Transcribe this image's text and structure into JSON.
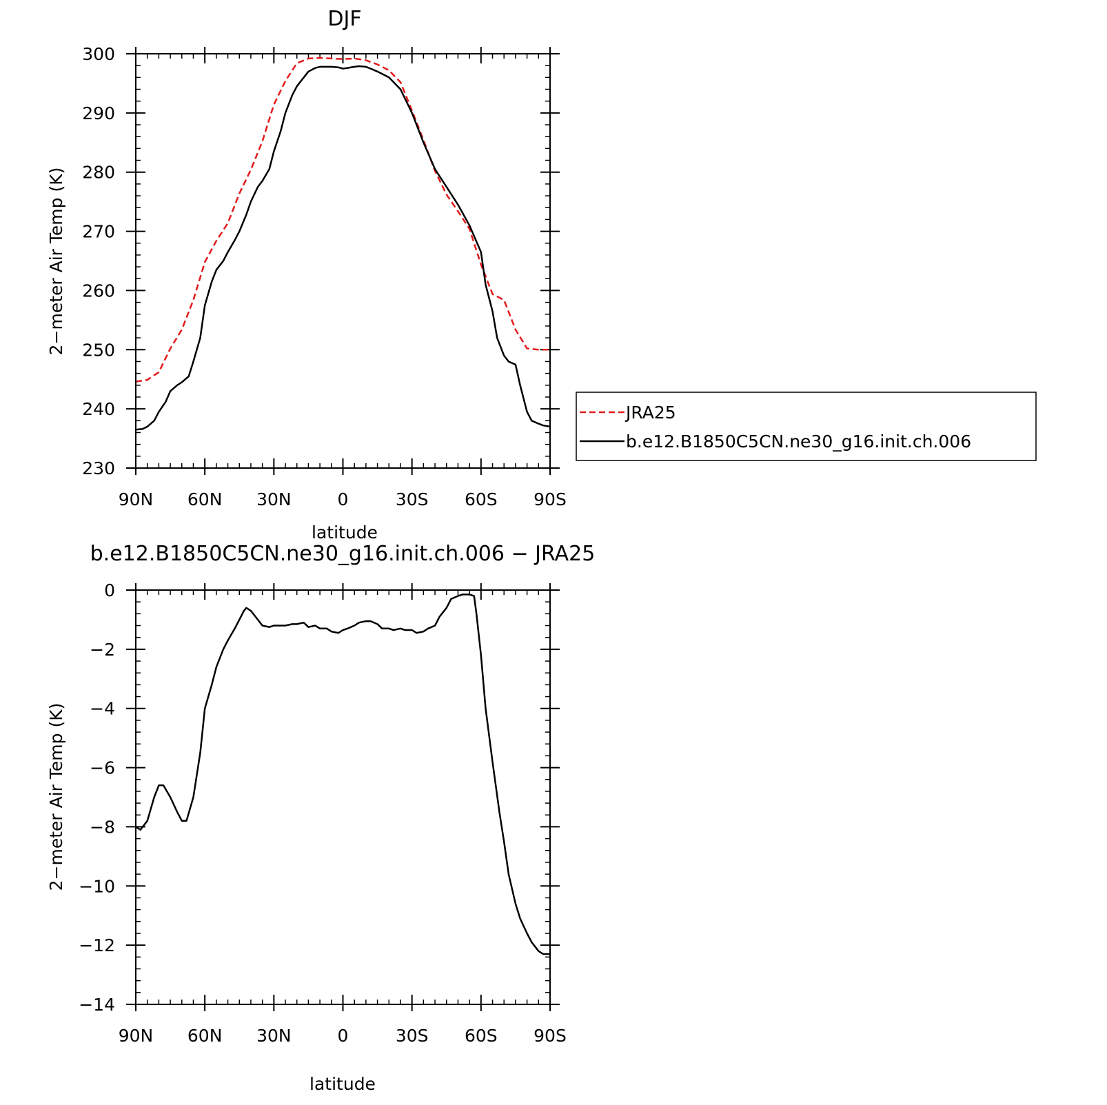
{
  "colors": {
    "jra": "#e41a1c",
    "model": "#000000",
    "axis": "#000000"
  },
  "legend": {
    "placement": "right of top panel",
    "entries": [
      {
        "label": "JRA25",
        "color": "#e41a1c",
        "style": "dashed"
      },
      {
        "label": "b.e12.B1850C5CN.ne30_g16.init.ch.006",
        "color": "#000000",
        "style": "solid"
      }
    ]
  },
  "chart_data": [
    {
      "type": "line",
      "title": "DJF",
      "xlabel": "latitude",
      "ylabel": "2−meter Air Temp (K)",
      "xlim": [
        90,
        -90
      ],
      "ylim": [
        230,
        300
      ],
      "xticks": [
        90,
        60,
        30,
        0,
        -30,
        -60,
        -90
      ],
      "xtick_labels": [
        "90N",
        "60N",
        "30N",
        "0",
        "30S",
        "60S",
        "90S"
      ],
      "yticks": [
        230,
        240,
        250,
        260,
        270,
        280,
        290,
        300
      ],
      "ytick_labels": [
        "230",
        "240",
        "250",
        "260",
        "270",
        "280",
        "290",
        "300"
      ],
      "grid": false,
      "series": [
        {
          "name": "JRA25",
          "color": "#e41a1c",
          "style": "dashed",
          "x": [
            90,
            85,
            80,
            75,
            70,
            65,
            60,
            55,
            50,
            45,
            40,
            35,
            30,
            25,
            20,
            15,
            10,
            5,
            0,
            -5,
            -10,
            -15,
            -20,
            -25,
            -30,
            -35,
            -40,
            -45,
            -50,
            -55,
            -60,
            -65,
            -70,
            -75,
            -80,
            -85,
            -88,
            -90
          ],
          "values": [
            244.6,
            244.9,
            246.2,
            250.2,
            253.4,
            258.4,
            264.8,
            268.4,
            271.4,
            276.4,
            280.4,
            285.2,
            291.4,
            295.4,
            298.4,
            299.2,
            299.3,
            299.2,
            299.1,
            299.2,
            298.9,
            298.2,
            297.2,
            295.2,
            290.4,
            285.4,
            280.2,
            276.2,
            273.4,
            270.4,
            264.4,
            259.4,
            258.4,
            253.4,
            250.2,
            250.0,
            250.0,
            250.0
          ]
        },
        {
          "name": "b.e12.B1850C5CN.ne30_g16.init.ch.006",
          "color": "#000000",
          "style": "solid",
          "x": [
            90,
            87,
            85,
            82,
            80,
            77,
            75,
            72,
            70,
            67,
            65,
            62,
            60,
            57,
            55,
            52,
            50,
            47,
            45,
            42,
            40,
            37,
            35,
            32,
            30,
            27,
            25,
            22,
            20,
            17,
            15,
            12,
            10,
            7,
            5,
            2,
            0,
            -2,
            -5,
            -7,
            -10,
            -12,
            -15,
            -20,
            -25,
            -30,
            -35,
            -40,
            -45,
            -50,
            -55,
            -60,
            -62,
            -65,
            -67,
            -70,
            -72,
            -75,
            -77,
            -80,
            -82,
            -85,
            -87,
            -90
          ],
          "values": [
            236.5,
            236.6,
            237.0,
            238.0,
            239.5,
            241.2,
            243.0,
            244.0,
            244.5,
            245.5,
            248.0,
            252.0,
            257.5,
            261.5,
            263.5,
            265.0,
            266.5,
            268.5,
            270.0,
            272.8,
            275.0,
            277.5,
            278.5,
            280.5,
            283.5,
            287.0,
            290.0,
            293.0,
            294.5,
            296.0,
            297.0,
            297.6,
            297.8,
            297.8,
            297.8,
            297.7,
            297.5,
            297.6,
            297.8,
            297.9,
            297.8,
            297.5,
            297.0,
            296.0,
            294.0,
            290.0,
            285.0,
            280.5,
            277.5,
            274.5,
            271.0,
            266.5,
            261.0,
            256.5,
            252.0,
            249.0,
            248.0,
            247.5,
            244.0,
            239.5,
            238.0,
            237.5,
            237.2,
            237.0
          ]
        }
      ]
    },
    {
      "type": "line",
      "title": "b.e12.B1850C5CN.ne30_g16.init.ch.006 − JRA25",
      "xlabel": "latitude",
      "ylabel": "2−meter Air Temp (K)",
      "xlim": [
        90,
        -90
      ],
      "ylim": [
        -14,
        0
      ],
      "xticks": [
        90,
        60,
        30,
        0,
        -30,
        -60,
        -90
      ],
      "xtick_labels": [
        "90N",
        "60N",
        "30N",
        "0",
        "30S",
        "60S",
        "90S"
      ],
      "yticks": [
        0,
        -2,
        -4,
        -6,
        -8,
        -10,
        -12,
        -14
      ],
      "ytick_labels": [
        "0",
        "−2",
        "−4",
        "−6",
        "−8",
        "−10",
        "−12",
        "−14"
      ],
      "grid": false,
      "series": [
        {
          "name": "b.e12.B1850C5CN.ne30_g16.init.ch.006 − JRA25",
          "color": "#000000",
          "style": "solid",
          "x": [
            90,
            88,
            85,
            82,
            80,
            78,
            75,
            72,
            70,
            68,
            65,
            62,
            60,
            57,
            55,
            52,
            50,
            47,
            45,
            43,
            42,
            40,
            37,
            35,
            32,
            30,
            27,
            25,
            22,
            20,
            17,
            15,
            12,
            10,
            7,
            5,
            2,
            0,
            -2,
            -5,
            -7,
            -10,
            -12,
            -15,
            -17,
            -20,
            -22,
            -25,
            -27,
            -30,
            -32,
            -35,
            -37,
            -40,
            -42,
            -45,
            -47,
            -50,
            -52,
            -55,
            -57,
            -58,
            -60,
            -62,
            -65,
            -68,
            -70,
            -72,
            -75,
            -77,
            -80,
            -82,
            -85,
            -87,
            -90
          ],
          "values": [
            -8.0,
            -8.1,
            -7.8,
            -7.0,
            -6.6,
            -6.6,
            -7.0,
            -7.5,
            -7.8,
            -7.8,
            -7.0,
            -5.5,
            -4.0,
            -3.2,
            -2.6,
            -2.0,
            -1.7,
            -1.3,
            -1.0,
            -0.7,
            -0.6,
            -0.7,
            -1.0,
            -1.2,
            -1.25,
            -1.2,
            -1.2,
            -1.2,
            -1.15,
            -1.15,
            -1.1,
            -1.25,
            -1.2,
            -1.3,
            -1.3,
            -1.4,
            -1.45,
            -1.35,
            -1.3,
            -1.2,
            -1.1,
            -1.05,
            -1.05,
            -1.15,
            -1.3,
            -1.3,
            -1.35,
            -1.3,
            -1.35,
            -1.35,
            -1.45,
            -1.4,
            -1.3,
            -1.2,
            -0.9,
            -0.6,
            -0.3,
            -0.2,
            -0.15,
            -0.15,
            -0.2,
            -0.8,
            -2.2,
            -4.0,
            -5.8,
            -7.5,
            -8.5,
            -9.6,
            -10.6,
            -11.1,
            -11.6,
            -11.9,
            -12.2,
            -12.3,
            -12.3
          ]
        }
      ]
    }
  ]
}
